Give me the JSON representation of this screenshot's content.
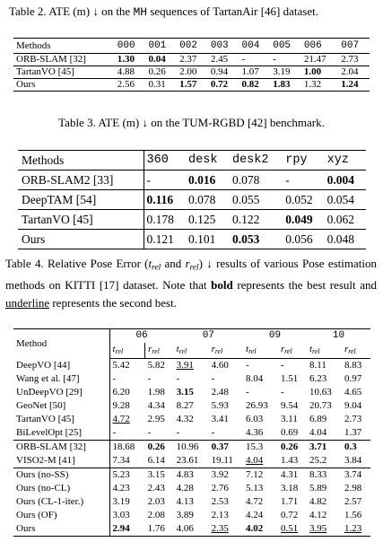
{
  "tables": [
    {
      "caption": [
        {
          "text": "Table 2.  ATE (m) ↓ on the "
        },
        {
          "text": "MH",
          "style": "mono"
        },
        {
          "text": " sequences of TartanAir [46] dataset."
        }
      ],
      "header": [
        "Methods",
        "000",
        "001",
        "002",
        "003",
        "004",
        "005",
        "006",
        "007"
      ],
      "rows": [
        [
          "ORB-SLAM [32]",
          {
            "text": "1.30",
            "style": "bold"
          },
          {
            "text": "0.04",
            "style": "bold"
          },
          "2.37",
          "2.45",
          "-",
          "-",
          "21.47",
          "2.73"
        ],
        [
          "TartanVO [45]",
          "4.88",
          "0.26",
          "2.00",
          "0.94",
          "1.07",
          "3.19",
          {
            "text": "1.00",
            "style": "bold"
          },
          "2.04"
        ],
        [
          "Ours",
          "2.56",
          "0.31",
          {
            "text": "1.57",
            "style": "bold"
          },
          {
            "text": "0.72",
            "style": "bold"
          },
          {
            "text": "0.82",
            "style": "bold"
          },
          {
            "text": "1.83",
            "style": "bold"
          },
          "1.32",
          {
            "text": "1.24",
            "style": "bold"
          }
        ]
      ]
    },
    {
      "caption": [
        {
          "text": "Table 3.  ATE (m) ↓ on the TUM-RGBD [42] benchmark."
        }
      ],
      "header": [
        "Methods",
        "360",
        "desk",
        "desk2",
        "rpy",
        "xyz"
      ],
      "rows": [
        [
          "ORB-SLAM2 [33]",
          "-",
          {
            "text": "0.016",
            "style": "bold"
          },
          "0.078",
          "-",
          {
            "text": "0.004",
            "style": "bold"
          }
        ],
        [
          "DeepTAM [54]",
          {
            "text": "0.116",
            "style": "bold"
          },
          "0.078",
          "0.055",
          "0.052",
          "0.054"
        ],
        [
          "TartanVO [45]",
          "0.178",
          "0.125",
          "0.122",
          {
            "text": "0.049",
            "style": "bold"
          },
          "0.062"
        ],
        [
          "Ours",
          "0.121",
          "0.101",
          {
            "text": "0.053",
            "style": "bold"
          },
          "0.056",
          "0.048"
        ]
      ]
    },
    {
      "caption": [
        {
          "text": "Table 4.  Relative Pose Error ("
        },
        {
          "text": "t",
          "style": "italic"
        },
        {
          "text": "rel",
          "style": "sub"
        },
        {
          "text": " and "
        },
        {
          "text": "r",
          "style": "italic"
        },
        {
          "text": "rel",
          "style": "sub"
        },
        {
          "text": ") ↓ results of various Pose estimation methods on KITTI [17] dataset. Note that "
        },
        {
          "text": "bold",
          "style": "bold"
        },
        {
          "text": " represents the best result and "
        },
        {
          "text": "underline",
          "style": "underline"
        },
        {
          "text": " represents the second best."
        }
      ],
      "header": [
        "Method",
        "06",
        "07",
        "09",
        "10"
      ],
      "subheaders": [
        {
          "text": "t",
          "sub": "rel"
        },
        {
          "text": "r",
          "sub": "rel"
        },
        {
          "text": "t",
          "sub": "rel"
        },
        {
          "text": "r",
          "sub": "rel"
        },
        {
          "text": "t",
          "sub": "rel"
        },
        {
          "text": "r",
          "sub": "rel"
        },
        {
          "text": "t",
          "sub": "rel"
        },
        {
          "text": "r",
          "sub": "rel"
        }
      ],
      "rows": [
        [
          "DeepVO [44]",
          "5.42",
          "5.82",
          {
            "text": "3.91",
            "style": "underline"
          },
          "4.60",
          "-",
          "-",
          "8.11",
          "8.83"
        ],
        [
          "Wang et al. [47]",
          "-",
          "-",
          "-",
          "-",
          "8.04",
          "1.51",
          "6.23",
          "0.97"
        ],
        [
          "UnDeepVO [29]",
          "6.20",
          "1.98",
          {
            "text": "3.15",
            "style": "bold"
          },
          "2.48",
          "-",
          "-",
          "10.63",
          "4.65"
        ],
        [
          "GeoNet [50]",
          "9.28",
          "4.34",
          "8.27",
          "5.93",
          "26.93",
          "9.54",
          "20.73",
          "9.04"
        ],
        [
          "TartanVO [45]",
          {
            "text": "4.72",
            "style": "underline"
          },
          "2.95",
          "4.32",
          "3.41",
          "6.03",
          "3.11",
          "6.89",
          "2.73"
        ],
        [
          "BiLevelOpt [25]",
          "-",
          "-",
          "-",
          "-",
          "4.36",
          "0.69",
          "4.04",
          "1.37"
        ],
        [
          "ORB-SLAM [32]",
          "18.68",
          {
            "text": "0.26",
            "style": "bold"
          },
          "10.96",
          {
            "text": "0.37",
            "style": "bold"
          },
          "15.3",
          {
            "text": "0.26",
            "style": "bold"
          },
          {
            "text": "3.71",
            "style": "bold"
          },
          {
            "text": "0.3",
            "style": "bold"
          }
        ],
        [
          "VISO2-M [41]",
          "7.34",
          "6.14",
          "23.61",
          "19.11",
          {
            "text": "4.04",
            "style": "underline"
          },
          "1.43",
          "25.2",
          "3.84"
        ],
        [
          "Ours (no-SS)",
          "5.23",
          "3.15",
          "4.83",
          "3.92",
          "7.12",
          "4.31",
          "8.33",
          "3.74"
        ],
        [
          "Ours (no-CL)",
          "4.23",
          "2.43",
          "4.28",
          "2.76",
          "5.13",
          "3.18",
          "5.89",
          "2.98"
        ],
        [
          "Ours (CL-1-iter.)",
          "3.19",
          "2.03",
          "4.13",
          "2.53",
          "4.72",
          "1.71",
          "4.82",
          "2.57"
        ],
        [
          "Ours (OF)",
          "3.03",
          "2.08",
          "3.89",
          "2.13",
          "4.24",
          "0.72",
          "4.12",
          "1.56"
        ],
        [
          "Ours",
          {
            "text": "2.94",
            "style": "bold"
          },
          "1.76",
          "4.06",
          {
            "text": "2.35",
            "style": "underline"
          },
          {
            "text": "4.02",
            "style": "bold"
          },
          {
            "text": "0.51",
            "style": "underline"
          },
          {
            "text": "3.95",
            "style": "underline"
          },
          {
            "text": "1.23",
            "style": "underline"
          }
        ]
      ]
    }
  ]
}
